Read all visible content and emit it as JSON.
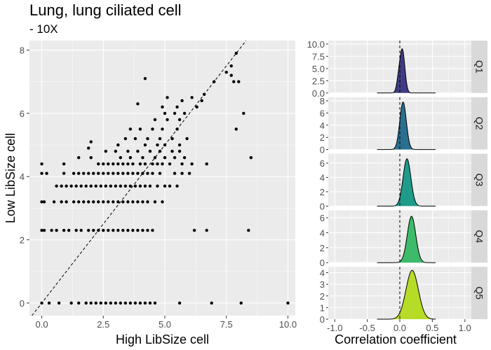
{
  "header": {
    "title": "Lung, lung ciliated cell",
    "subtitle": "- 10X"
  },
  "colors": {
    "panel_bg": "#ebebeb",
    "grid": "#ffffff",
    "strip_bg": "#d9d9d9",
    "points": "#000000",
    "q1": "#3f3c84",
    "q2": "#2a6f8f",
    "q3": "#1e9b8a",
    "q4": "#3dbb6a",
    "q5": "#b7dc27"
  },
  "chart_data": [
    {
      "type": "scatter",
      "title": "Lung, lung ciliated cell",
      "subtitle": "- 10X",
      "xlabel": "High LibSize cell",
      "ylabel": "Low LibSize cell",
      "xlim": [
        -0.5,
        10.3
      ],
      "ylim": [
        -0.4,
        8.3
      ],
      "x_ticks": [
        0,
        2.5,
        5,
        7.5,
        10
      ],
      "x_tick_labels": [
        "0.0",
        "2.5",
        "5.0",
        "7.5",
        "10.0"
      ],
      "y_ticks": [
        0,
        2,
        4,
        6,
        8
      ],
      "y_tick_labels": [
        "0",
        "2",
        "4",
        "6",
        "8"
      ],
      "reference_line": "y = x (dashed)",
      "grid": true,
      "points": [
        [
          0,
          0
        ],
        [
          0.3,
          0
        ],
        [
          0.7,
          0
        ],
        [
          1.2,
          0
        ],
        [
          1.5,
          0
        ],
        [
          1.8,
          0
        ],
        [
          2.0,
          0
        ],
        [
          2.2,
          0
        ],
        [
          2.4,
          0
        ],
        [
          2.6,
          0
        ],
        [
          2.8,
          0
        ],
        [
          3.0,
          0
        ],
        [
          3.2,
          0
        ],
        [
          3.4,
          0
        ],
        [
          3.6,
          0
        ],
        [
          3.8,
          0
        ],
        [
          4.0,
          0
        ],
        [
          4.2,
          0
        ],
        [
          4.4,
          0
        ],
        [
          4.6,
          0
        ],
        [
          5.6,
          0
        ],
        [
          6.9,
          0
        ],
        [
          8.1,
          0
        ],
        [
          10.0,
          0
        ],
        [
          0,
          2.3
        ],
        [
          0.1,
          2.3
        ],
        [
          0.4,
          2.3
        ],
        [
          0.6,
          2.3
        ],
        [
          0.9,
          2.3
        ],
        [
          1.1,
          2.3
        ],
        [
          1.4,
          2.3
        ],
        [
          1.6,
          2.3
        ],
        [
          1.9,
          2.3
        ],
        [
          2.1,
          2.3
        ],
        [
          2.3,
          2.3
        ],
        [
          2.5,
          2.3
        ],
        [
          2.7,
          2.3
        ],
        [
          2.9,
          2.3
        ],
        [
          3.1,
          2.3
        ],
        [
          3.3,
          2.3
        ],
        [
          3.5,
          2.3
        ],
        [
          3.7,
          2.3
        ],
        [
          3.9,
          2.3
        ],
        [
          4.1,
          2.3
        ],
        [
          4.3,
          2.3
        ],
        [
          4.5,
          2.3
        ],
        [
          6.2,
          2.3
        ],
        [
          6.7,
          2.3
        ],
        [
          8.4,
          2.3
        ],
        [
          0,
          3.2
        ],
        [
          0.1,
          3.2
        ],
        [
          0.5,
          3.2
        ],
        [
          0.8,
          3.2
        ],
        [
          1.0,
          3.2
        ],
        [
          1.3,
          3.2
        ],
        [
          1.5,
          3.2
        ],
        [
          1.7,
          3.2
        ],
        [
          1.9,
          3.2
        ],
        [
          2.1,
          3.2
        ],
        [
          2.3,
          3.2
        ],
        [
          2.5,
          3.2
        ],
        [
          2.7,
          3.2
        ],
        [
          2.9,
          3.2
        ],
        [
          3.1,
          3.2
        ],
        [
          3.3,
          3.2
        ],
        [
          3.5,
          3.2
        ],
        [
          3.7,
          3.2
        ],
        [
          3.9,
          3.2
        ],
        [
          4.1,
          3.2
        ],
        [
          4.3,
          3.2
        ],
        [
          4.6,
          3.2
        ],
        [
          4.9,
          3.2
        ],
        [
          0.6,
          3.7
        ],
        [
          0.8,
          3.7
        ],
        [
          1.0,
          3.7
        ],
        [
          1.2,
          3.7
        ],
        [
          1.4,
          3.7
        ],
        [
          1.6,
          3.7
        ],
        [
          1.8,
          3.7
        ],
        [
          2.0,
          3.7
        ],
        [
          2.2,
          3.7
        ],
        [
          2.4,
          3.7
        ],
        [
          2.6,
          3.7
        ],
        [
          2.8,
          3.7
        ],
        [
          3.0,
          3.7
        ],
        [
          3.2,
          3.7
        ],
        [
          3.4,
          3.7
        ],
        [
          3.6,
          3.7
        ],
        [
          3.8,
          3.7
        ],
        [
          4.0,
          3.7
        ],
        [
          4.2,
          3.7
        ],
        [
          4.4,
          3.7
        ],
        [
          4.7,
          3.7
        ],
        [
          5.0,
          3.7
        ],
        [
          5.2,
          3.7
        ],
        [
          5.5,
          3.7
        ],
        [
          0,
          4.1
        ],
        [
          0.2,
          4.1
        ],
        [
          0.9,
          4.1
        ],
        [
          1.3,
          4.1
        ],
        [
          1.5,
          4.1
        ],
        [
          1.7,
          4.1
        ],
        [
          1.9,
          4.1
        ],
        [
          2.1,
          4.1
        ],
        [
          2.3,
          4.1
        ],
        [
          2.5,
          4.1
        ],
        [
          2.7,
          4.1
        ],
        [
          2.9,
          4.1
        ],
        [
          3.1,
          4.1
        ],
        [
          3.3,
          4.1
        ],
        [
          3.5,
          4.1
        ],
        [
          3.7,
          4.1
        ],
        [
          3.9,
          4.1
        ],
        [
          4.1,
          4.1
        ],
        [
          4.3,
          4.1
        ],
        [
          4.5,
          4.1
        ],
        [
          4.8,
          4.1
        ],
        [
          5.4,
          4.1
        ],
        [
          5.7,
          4.1
        ],
        [
          6.0,
          4.1
        ],
        [
          0,
          4.4
        ],
        [
          0.9,
          4.4
        ],
        [
          2.3,
          4.4
        ],
        [
          2.5,
          4.4
        ],
        [
          2.7,
          4.4
        ],
        [
          2.9,
          4.4
        ],
        [
          3.1,
          4.4
        ],
        [
          3.3,
          4.4
        ],
        [
          3.5,
          4.4
        ],
        [
          3.7,
          4.4
        ],
        [
          4.0,
          4.4
        ],
        [
          4.2,
          4.4
        ],
        [
          4.5,
          4.4
        ],
        [
          4.7,
          4.4
        ],
        [
          4.9,
          4.4
        ],
        [
          5.2,
          4.4
        ],
        [
          5.7,
          4.4
        ],
        [
          6.1,
          4.4
        ],
        [
          6.7,
          4.4
        ],
        [
          1.5,
          4.6
        ],
        [
          2.0,
          4.6
        ],
        [
          3.2,
          4.6
        ],
        [
          3.6,
          4.6
        ],
        [
          4.1,
          4.6
        ],
        [
          4.6,
          4.6
        ],
        [
          5.0,
          4.6
        ],
        [
          5.4,
          4.6
        ],
        [
          5.8,
          4.6
        ],
        [
          8.5,
          4.6
        ],
        [
          2.6,
          4.8
        ],
        [
          3.0,
          4.8
        ],
        [
          3.5,
          4.8
        ],
        [
          3.9,
          4.8
        ],
        [
          4.4,
          4.8
        ],
        [
          4.8,
          4.8
        ],
        [
          5.3,
          4.8
        ],
        [
          5.6,
          4.8
        ],
        [
          1.9,
          4.9
        ],
        [
          3.1,
          5.0
        ],
        [
          2.0,
          5.1
        ],
        [
          4.2,
          5.0
        ],
        [
          4.7,
          5.0
        ],
        [
          5.0,
          5.0
        ],
        [
          5.6,
          5.0
        ],
        [
          3.4,
          5.2
        ],
        [
          3.8,
          5.2
        ],
        [
          4.3,
          5.2
        ],
        [
          4.8,
          5.2
        ],
        [
          5.3,
          5.2
        ],
        [
          5.9,
          5.2
        ],
        [
          3.6,
          5.5
        ],
        [
          4.0,
          5.5
        ],
        [
          4.5,
          5.5
        ],
        [
          4.9,
          5.5
        ],
        [
          5.5,
          5.5
        ],
        [
          7.9,
          5.5
        ],
        [
          4.6,
          5.8
        ],
        [
          5.1,
          5.8
        ],
        [
          5.6,
          5.8
        ],
        [
          5.0,
          6.0
        ],
        [
          5.4,
          6.0
        ],
        [
          5.8,
          6.0
        ],
        [
          8.2,
          6.0
        ],
        [
          4.9,
          6.2
        ],
        [
          5.5,
          6.2
        ],
        [
          6.3,
          6.2
        ],
        [
          5.7,
          6.4
        ],
        [
          6.5,
          6.4
        ],
        [
          3.9,
          6.3
        ],
        [
          6.1,
          6.5
        ],
        [
          5.1,
          6.5
        ],
        [
          6.6,
          6.6
        ],
        [
          7.0,
          7.0
        ],
        [
          7.5,
          7.3
        ],
        [
          7.7,
          7.2
        ],
        [
          7.7,
          7.5
        ],
        [
          7.8,
          7.0
        ],
        [
          8.0,
          7.0
        ],
        [
          7.9,
          7.9
        ],
        [
          4.2,
          7.1
        ]
      ]
    },
    {
      "type": "area",
      "xlabel": "Correlation coefficient",
      "xlim": [
        -1.1,
        1.1
      ],
      "x_ticks": [
        -1.0,
        -0.5,
        0.0,
        0.5,
        1.0
      ],
      "x_tick_labels": [
        "-1.0",
        "-0.5",
        "0.0",
        "0.5",
        "1.0"
      ],
      "vline": 0,
      "curve_support": [
        -0.35,
        0.55
      ],
      "panels": [
        {
          "name": "Q1",
          "y_ticks": [
            0,
            2.5,
            5,
            7.5,
            10
          ],
          "y_tick_labels": [
            "0.0",
            "2.5",
            "5.0",
            "7.5",
            "10.0"
          ],
          "ymax": 10.7,
          "curve": [
            {
              "w": 1.0,
              "mu": 0.04,
              "sd": 0.038,
              "peak": 8.7
            },
            {
              "w": 0.25,
              "mu": -0.02,
              "sd": 0.03,
              "peak": 2.2
            }
          ]
        },
        {
          "name": "Q2",
          "y_ticks": [
            0,
            2,
            4,
            6,
            8
          ],
          "y_tick_labels": [
            "0",
            "2",
            "4",
            "6",
            "8"
          ],
          "ymax": 8.6,
          "curve": [
            {
              "w": 1.0,
              "mu": 0.05,
              "sd": 0.05,
              "peak": 7.8
            }
          ]
        },
        {
          "name": "Q3",
          "y_ticks": [
            0,
            2,
            4,
            6
          ],
          "y_tick_labels": [
            "0",
            "2",
            "4",
            "6"
          ],
          "ymax": 7.3,
          "curve": [
            {
              "w": 1.0,
              "mu": 0.11,
              "sd": 0.06,
              "peak": 6.6
            }
          ]
        },
        {
          "name": "Q4",
          "y_ticks": [
            0,
            2,
            4,
            6
          ],
          "y_tick_labels": [
            "0",
            "2",
            "4",
            "6"
          ],
          "ymax": 7.0,
          "curve": [
            {
              "w": 1.0,
              "mu": 0.18,
              "sd": 0.065,
              "peak": 6.2
            }
          ]
        },
        {
          "name": "Q5",
          "y_ticks": [
            0,
            1,
            2,
            3,
            4
          ],
          "y_tick_labels": [
            "0",
            "1",
            "2",
            "3",
            "4"
          ],
          "ymax": 4.5,
          "curve": [
            {
              "w": 1.0,
              "mu": 0.19,
              "sd": 0.095,
              "peak": 4.2
            }
          ]
        }
      ]
    }
  ]
}
